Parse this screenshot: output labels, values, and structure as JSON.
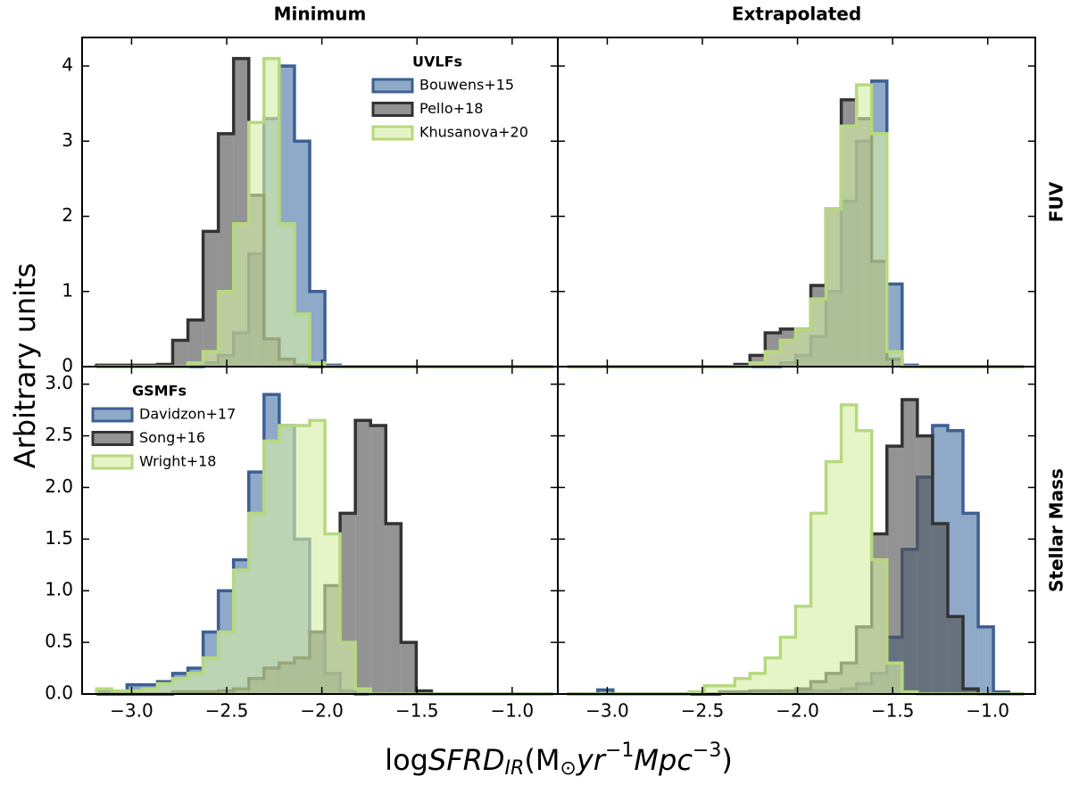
{
  "y_label": "Arbitrary units",
  "x_label": [
    "log",
    "SFRD",
    "IR",
    "(M",
    "⊙",
    "yr",
    "−1",
    "Mpc",
    "−3",
    ")"
  ],
  "chart_data": [
    {
      "type": "histogram",
      "title": "Minimum",
      "legend_title": "UVLFs",
      "legend": "upper right",
      "bins": [
        -3.184,
        -3.104,
        -3.024,
        -2.944,
        -2.864,
        -2.784,
        -2.704,
        -2.624,
        -2.544,
        -2.464,
        -2.384,
        -2.304,
        -2.224,
        -2.144,
        -2.064,
        -1.984,
        -1.904,
        -1.824,
        -1.744,
        -1.664,
        -1.584,
        -1.504,
        -1.424,
        -1.344,
        -1.264,
        -1.184,
        -1.104,
        -1.024,
        -0.944,
        -0.864,
        -0.784
      ],
      "series": [
        {
          "name": "Bouwens+15",
          "color": "#4a74a8",
          "edgecolor": "#3d5f93",
          "values": [
            0,
            0,
            0,
            0,
            0,
            0,
            0,
            0.05,
            0.15,
            0.45,
            1.5,
            3.3,
            4.0,
            3.0,
            1.0,
            0.02,
            0,
            0,
            0,
            0,
            0,
            0,
            0,
            0,
            0,
            0,
            0,
            0,
            0,
            0
          ]
        },
        {
          "name": "Pello+18",
          "color": "#505050",
          "edgecolor": "#333333",
          "values": [
            0.02,
            0.02,
            0.02,
            0.02,
            0.03,
            0.35,
            0.62,
            1.8,
            3.1,
            4.1,
            2.28,
            0.37,
            0.1,
            0.02,
            0,
            0,
            0,
            0,
            0,
            0,
            0,
            0,
            0,
            0,
            0,
            0,
            0,
            0,
            0,
            0
          ]
        },
        {
          "name": "Khusanova+20",
          "color": "#d6efa6",
          "edgecolor": "#b6d97e",
          "values": [
            0,
            0,
            0,
            0,
            0,
            0,
            0.05,
            0.2,
            1.0,
            1.9,
            3.25,
            4.1,
            1.9,
            0.7,
            0.05,
            0,
            0,
            0,
            0,
            0,
            0,
            0,
            0,
            0,
            0,
            0,
            0,
            0,
            0,
            0
          ]
        }
      ],
      "xlim": [
        -3.26,
        -0.76
      ],
      "ylim": [
        0,
        4.38
      ],
      "xticks": [
        -3,
        -2.5,
        -2,
        -1.5,
        -1
      ],
      "yticks": [
        0,
        1,
        2,
        3,
        4
      ]
    },
    {
      "type": "histogram",
      "title": "Extrapolated",
      "row_label": "FUV",
      "bins": [
        -3.21,
        -3.13,
        -3.05,
        -2.97,
        -2.89,
        -2.81,
        -2.73,
        -2.65,
        -2.57,
        -2.49,
        -2.41,
        -2.33,
        -2.25,
        -2.17,
        -2.09,
        -2.01,
        -1.93,
        -1.85,
        -1.77,
        -1.69,
        -1.61,
        -1.53,
        -1.45,
        -1.37,
        -1.29,
        -1.21,
        -1.13,
        -1.05,
        -0.97,
        -0.89,
        -0.81
      ],
      "series": [
        {
          "color": "#4a74a8",
          "edgecolor": "#3d5f93",
          "values": [
            0,
            0,
            0,
            0,
            0,
            0,
            0,
            0,
            0,
            0,
            0,
            0,
            0,
            0,
            0.05,
            0.15,
            0.4,
            1.0,
            2.2,
            3.0,
            3.8,
            1.1,
            0.02,
            0,
            0,
            0,
            0,
            0,
            0,
            0
          ]
        },
        {
          "color": "#505050",
          "edgecolor": "#333333",
          "values": [
            0,
            0,
            0,
            0,
            0,
            0,
            0,
            0,
            0,
            0,
            0,
            0.03,
            0.15,
            0.45,
            0.5,
            0.5,
            1.08,
            2.1,
            3.55,
            3.3,
            1.4,
            0.1,
            0,
            0,
            0,
            0,
            0,
            0,
            0,
            0
          ]
        },
        {
          "color": "#d6efa6",
          "edgecolor": "#b6d97e",
          "values": [
            0,
            0,
            0,
            0,
            0,
            0,
            0,
            0,
            0,
            0,
            0,
            0,
            0.05,
            0.2,
            0.35,
            0.5,
            0.9,
            2.1,
            3.2,
            3.75,
            3.1,
            0.2,
            0,
            0,
            0,
            0,
            0,
            0,
            0,
            0
          ]
        }
      ],
      "xlim": [
        -3.26,
        -0.75
      ],
      "ylim": [
        0,
        4.38
      ],
      "xticks": [
        -3,
        -2.5,
        -2,
        -1.5,
        -1
      ],
      "yticks": [
        0,
        1,
        2,
        3,
        4
      ]
    },
    {
      "type": "histogram",
      "legend_title": "GSMFs",
      "legend": "upper left",
      "bins": [
        -3.184,
        -3.104,
        -3.024,
        -2.944,
        -2.864,
        -2.784,
        -2.704,
        -2.624,
        -2.544,
        -2.464,
        -2.384,
        -2.304,
        -2.224,
        -2.144,
        -2.064,
        -1.984,
        -1.904,
        -1.824,
        -1.744,
        -1.664,
        -1.584,
        -1.504,
        -1.424,
        -1.344,
        -1.264,
        -1.184,
        -1.104,
        -1.024,
        -0.944,
        -0.864,
        -0.784
      ],
      "series": [
        {
          "name": "Davidzon+17",
          "color": "#4a74a8",
          "edgecolor": "#3d5f93",
          "values": [
            0.02,
            0.02,
            0.09,
            0.09,
            0.12,
            0.2,
            0.25,
            0.6,
            1.0,
            1.3,
            2.15,
            2.9,
            2.6,
            1.5,
            0.6,
            0.2,
            0.03,
            0,
            0,
            0,
            0,
            0,
            0,
            0,
            0,
            0,
            0,
            0,
            0,
            0
          ]
        },
        {
          "name": "Song+16",
          "color": "#505050",
          "edgecolor": "#333333",
          "values": [
            0,
            0,
            0,
            0,
            0,
            0.02,
            0.02,
            0.02,
            0.03,
            0.05,
            0.15,
            0.25,
            0.3,
            0.35,
            0.6,
            1.05,
            1.75,
            2.65,
            2.6,
            1.65,
            0.5,
            0.03,
            0,
            0,
            0,
            0,
            0,
            0,
            0,
            0
          ]
        },
        {
          "name": "Wright+18",
          "color": "#d6efa6",
          "edgecolor": "#b6d97e",
          "values": [
            0.05,
            0.03,
            0.03,
            0.05,
            0.1,
            0.15,
            0.2,
            0.35,
            0.6,
            1.2,
            1.75,
            2.45,
            2.6,
            2.6,
            2.65,
            1.55,
            0.5,
            0.05,
            0,
            0,
            0,
            0,
            0,
            0,
            0,
            0,
            0,
            0,
            0,
            0
          ]
        }
      ],
      "xlim": [
        -3.26,
        -0.76
      ],
      "ylim": [
        0,
        3.17
      ],
      "xticks": [
        {
          "value": -3,
          "label": "−3.0"
        },
        {
          "value": -2.5,
          "label": "−2.5"
        },
        {
          "value": -2,
          "label": "−2.0"
        },
        {
          "value": -1.5,
          "label": "−1.5"
        },
        {
          "value": -1,
          "label": "−1.0"
        }
      ],
      "yticks": [
        {
          "value": 0,
          "label": "0.0"
        },
        {
          "value": 0.5,
          "label": "0.5"
        },
        {
          "value": 1,
          "label": "1.0"
        },
        {
          "value": 1.5,
          "label": "1.5"
        },
        {
          "value": 2,
          "label": "2.0"
        },
        {
          "value": 2.5,
          "label": "2.5"
        },
        {
          "value": 3,
          "label": "3.0"
        }
      ]
    },
    {
      "type": "histogram",
      "row_label": "Stellar Mass",
      "bins": [
        -3.21,
        -3.13,
        -3.05,
        -2.97,
        -2.89,
        -2.81,
        -2.73,
        -2.65,
        -2.57,
        -2.49,
        -2.41,
        -2.33,
        -2.25,
        -2.17,
        -2.09,
        -2.01,
        -1.93,
        -1.85,
        -1.77,
        -1.69,
        -1.61,
        -1.53,
        -1.45,
        -1.37,
        -1.29,
        -1.21,
        -1.13,
        -1.05,
        -0.97,
        -0.89,
        -0.81
      ],
      "series": [
        {
          "color": "#4a74a8",
          "edgecolor": "#3d5f93",
          "values": [
            0,
            0,
            0.04,
            0,
            0,
            0,
            0,
            0,
            0,
            0,
            0.02,
            0.02,
            0.02,
            0.02,
            0.02,
            0.02,
            0.03,
            0.03,
            0.05,
            0.1,
            0.2,
            0.55,
            1.4,
            2.1,
            2.6,
            2.55,
            1.75,
            0.65,
            0.02,
            0
          ]
        },
        {
          "color": "#505050",
          "edgecolor": "#333333",
          "values": [
            0,
            0,
            0,
            0,
            0,
            0,
            0,
            0,
            0,
            0,
            0.02,
            0.02,
            0.03,
            0.03,
            0.03,
            0.05,
            0.12,
            0.2,
            0.3,
            0.65,
            1.55,
            2.4,
            2.85,
            2.5,
            1.65,
            0.75,
            0.05,
            0,
            0,
            0
          ]
        },
        {
          "color": "#d6efa6",
          "edgecolor": "#b6d97e",
          "values": [
            0,
            0,
            0,
            0,
            0,
            0,
            0,
            0,
            0.02,
            0.08,
            0.08,
            0.15,
            0.2,
            0.35,
            0.55,
            0.85,
            1.75,
            2.25,
            2.8,
            2.55,
            1.3,
            0.3,
            0.02,
            0,
            0,
            0,
            0,
            0,
            0,
            0
          ]
        }
      ],
      "xlim": [
        -3.26,
        -0.75
      ],
      "ylim": [
        0,
        3.17
      ],
      "xticks": [
        {
          "value": -3,
          "label": "−3.0"
        },
        {
          "value": -2.5,
          "label": "−2.5"
        },
        {
          "value": -2,
          "label": "−2.0"
        },
        {
          "value": -1.5,
          "label": "−1.5"
        },
        {
          "value": -1,
          "label": "−1.0"
        }
      ],
      "yticks": [
        0,
        0.5,
        1,
        1.5,
        2,
        2.5,
        3
      ]
    }
  ]
}
